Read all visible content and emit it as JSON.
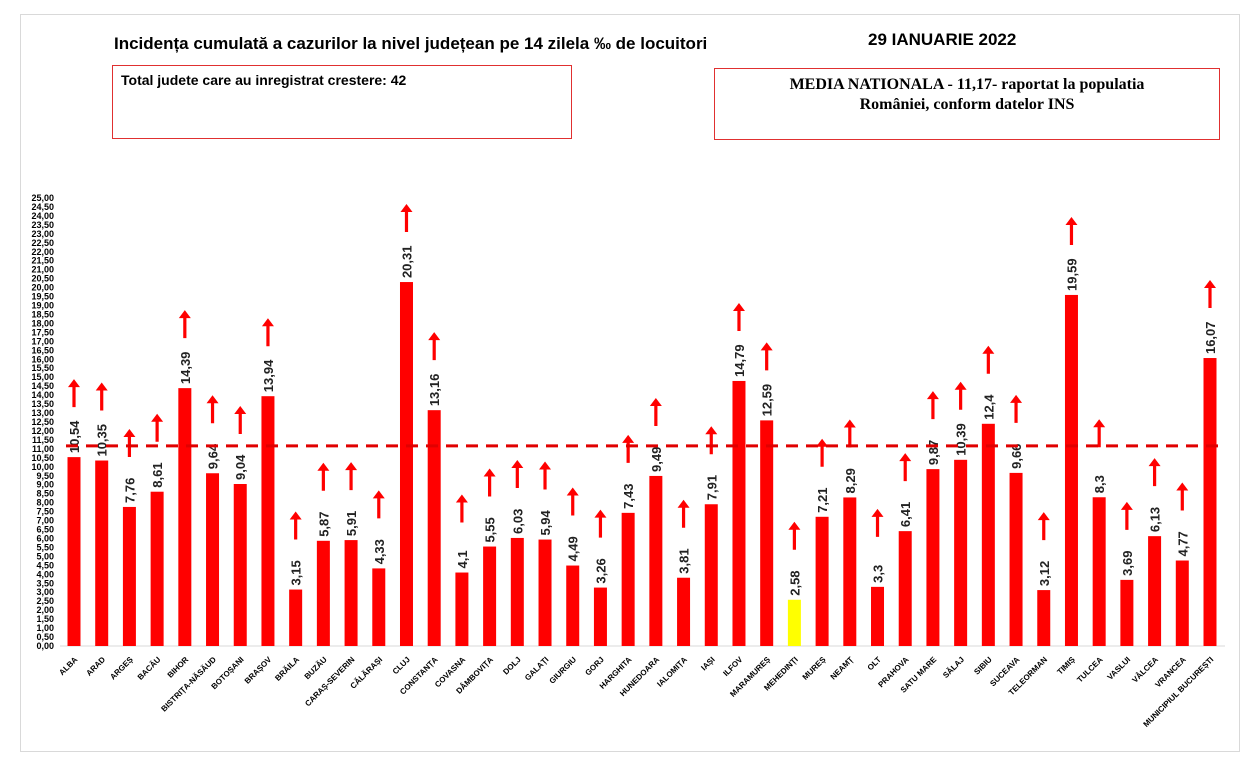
{
  "header": {
    "title": "Incidența cumulată a cazurilor la nivel județean pe 14 zilela ‰ de locuitori",
    "date": "29 IANUARIE 2022"
  },
  "info_box": {
    "text": "Total judete care au inregistrat crestere: 42"
  },
  "national_box": {
    "line1": "MEDIA NATIONALA - 11,17-  raportat la populatia",
    "line2": "României, conform datelor INS"
  },
  "chart_data": {
    "type": "bar",
    "title": "Incidența cumulată a cazurilor la nivel județean pe 14 zilela ‰ de locuitori",
    "xlabel": "",
    "ylabel": "",
    "ylim": [
      0,
      25
    ],
    "ytick_step": 0.5,
    "grid": false,
    "reference_line": {
      "value": 11.17,
      "color": "#e00000",
      "style": "dashed"
    },
    "categories": [
      "ALBA",
      "ARAD",
      "ARGEȘ",
      "BACĂU",
      "BIHOR",
      "BISTRIȚA-NĂSĂUD",
      "BOTOȘANI",
      "BRAȘOV",
      "BRĂILA",
      "BUZĂU",
      "CARAȘ-SEVERIN",
      "CĂLĂRAȘI",
      "CLUJ",
      "CONSTANȚA",
      "COVASNA",
      "DÂMBOVIȚA",
      "DOLJ",
      "GALAȚI",
      "GIURGIU",
      "GORJ",
      "HARGHITA",
      "HUNEDOARA",
      "IALOMIȚA",
      "IAȘI",
      "ILFOV",
      "MARAMUREȘ",
      "MEHEDINȚI",
      "MUREȘ",
      "NEAMȚ",
      "OLT",
      "PRAHOVA",
      "SATU MARE",
      "SĂLAJ",
      "SIBIU",
      "SUCEAVA",
      "TELEORMAN",
      "TIMIȘ",
      "TULCEA",
      "VASLUI",
      "VÂLCEA",
      "VRANCEA",
      "MUNICIPIUL BUCUREȘTI"
    ],
    "values": [
      10.54,
      10.35,
      7.76,
      8.61,
      14.39,
      9.64,
      9.04,
      13.94,
      3.15,
      5.87,
      5.91,
      4.33,
      20.31,
      13.16,
      4.1,
      5.55,
      6.03,
      5.94,
      4.49,
      3.26,
      7.43,
      9.49,
      3.81,
      7.91,
      14.79,
      12.59,
      2.58,
      7.21,
      8.29,
      3.3,
      6.41,
      9.87,
      10.39,
      12.4,
      9.66,
      3.12,
      19.59,
      8.3,
      3.69,
      6.13,
      4.77,
      16.07
    ],
    "data_labels": [
      "10,54",
      "10,35",
      "7,76",
      "8,61",
      "14,39",
      "9,64",
      "9,04",
      "13,94",
      "3,15",
      "5,87",
      "5,91",
      "4,33",
      "20,31",
      "13,16",
      "4,1",
      "5,55",
      "6,03",
      "5,94",
      "4,49",
      "3,26",
      "7,43",
      "9,49",
      "3,81",
      "7,91",
      "14,79",
      "12,59",
      "2,58",
      "7,21",
      "8,29",
      "3,3",
      "6,41",
      "9,87",
      "10,39",
      "12,4",
      "9,66",
      "3,12",
      "19,59",
      "8,3",
      "3,69",
      "6,13",
      "4,77",
      "16,07"
    ],
    "trend": "up-arrow on every county",
    "bar_color": "#ff0000",
    "highlight": {
      "MEHEDINȚI": "#ffff00"
    },
    "arrow_color": "#ff0000"
  }
}
